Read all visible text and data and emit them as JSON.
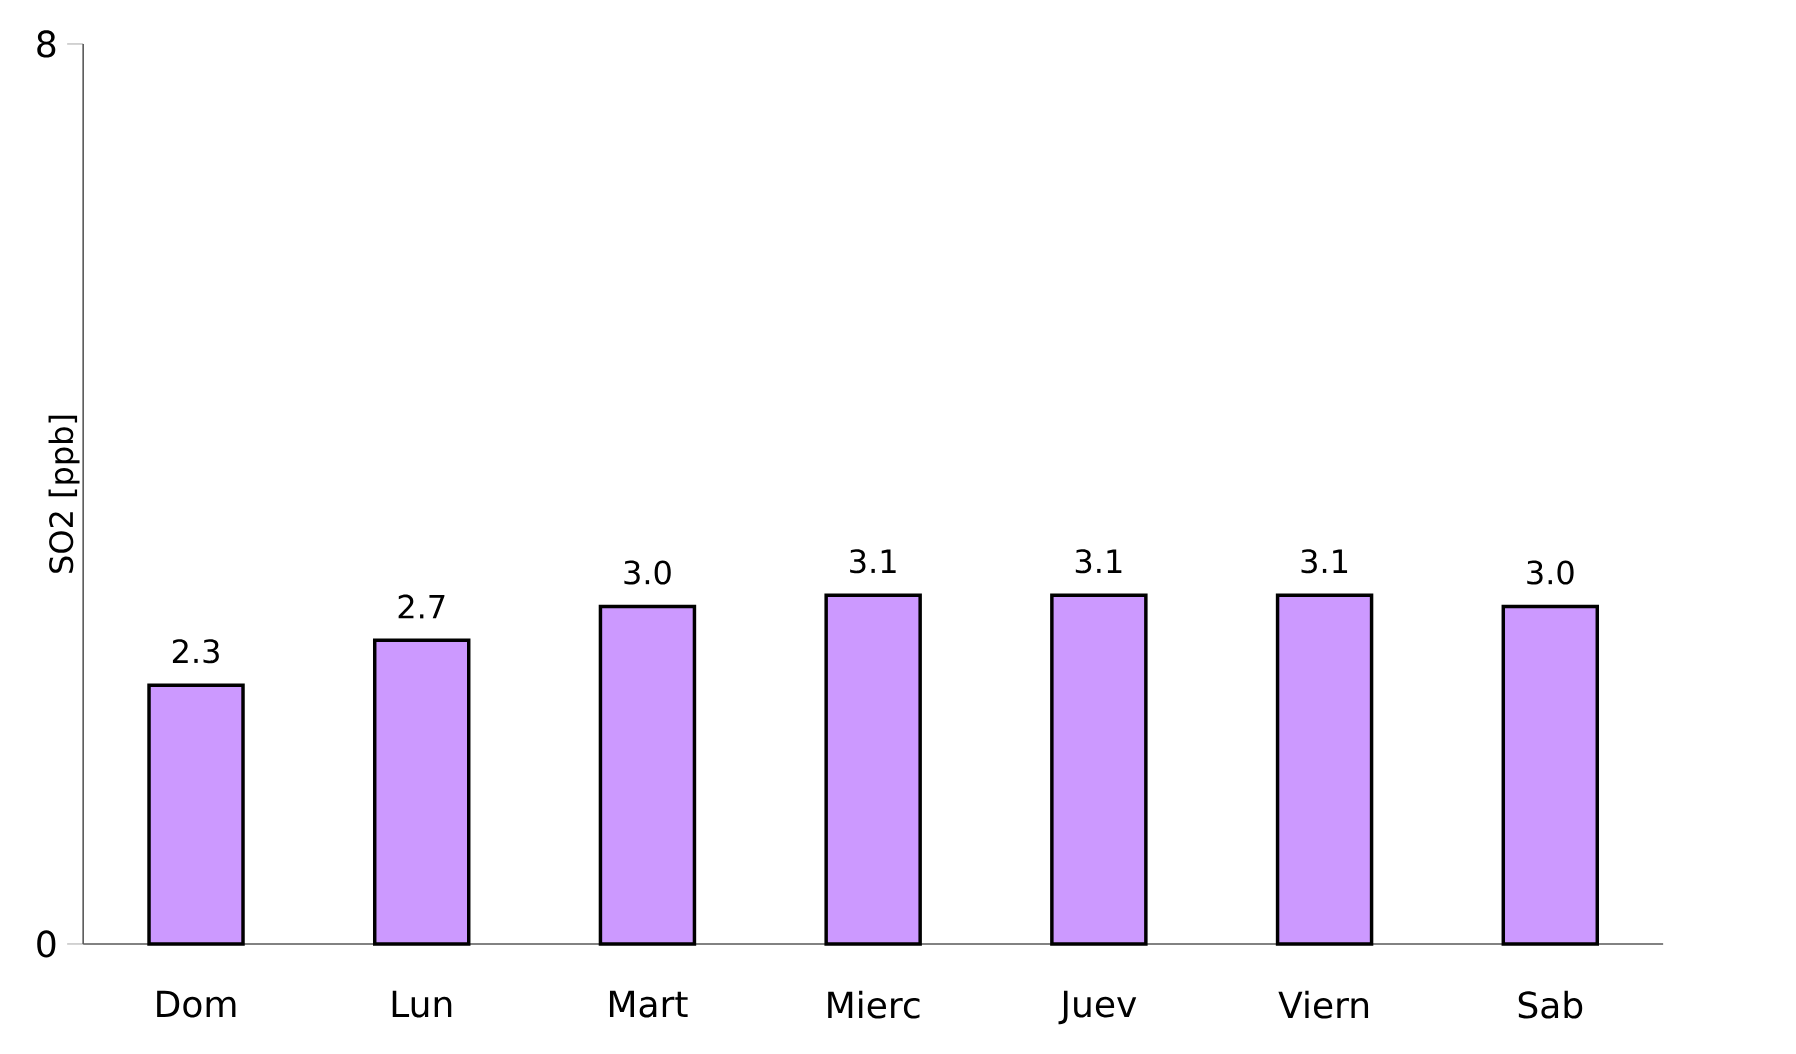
{
  "chart_data": {
    "type": "bar",
    "ylabel": "SO2 [ppb]",
    "categories": [
      "Dom",
      "Lun",
      "Mart",
      "Mierc",
      "Juev",
      "Viern",
      "Sab"
    ],
    "values": [
      2.3,
      2.7,
      3.0,
      3.1,
      3.1,
      3.1,
      3.0
    ],
    "value_labels": [
      "2.3",
      "2.7",
      "3.0",
      "3.1",
      "3.1",
      "3.1",
      "3.0"
    ],
    "color": "#cc99ff",
    "ylim": [
      0,
      8
    ],
    "yticks": [
      0,
      8
    ]
  }
}
